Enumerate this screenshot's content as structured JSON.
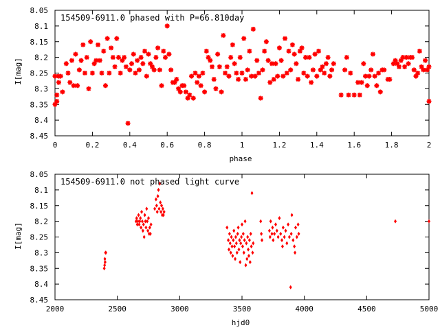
{
  "chart_data": [
    {
      "type": "scatter",
      "title": "154509-6911.0 phased with P=66.810day",
      "xlabel": "phase",
      "ylabel": "I[mag]",
      "xlim": [
        0,
        2
      ],
      "ylim": [
        8.05,
        8.45
      ],
      "y_inverted": true,
      "grid": false,
      "marker": "star",
      "color": "#ff0000",
      "xticks": [
        0,
        0.2,
        0.4,
        0.6,
        0.8,
        1,
        1.2,
        1.4,
        1.6,
        1.8,
        2
      ],
      "xtick_labels": [
        "0",
        "0.2",
        "0.4",
        "0.6",
        "0.8",
        "1",
        "1.2",
        "1.4",
        "1.6",
        "1.8",
        "2"
      ],
      "yticks": [
        8.05,
        8.1,
        8.15,
        8.2,
        8.25,
        8.3,
        8.35,
        8.4,
        8.45
      ],
      "ytick_labels": [
        "8.05",
        "8.1",
        "8.15",
        "8.2",
        "8.25",
        "8.3",
        "8.35",
        "8.4",
        "8.45"
      ],
      "points": [
        [
          0.0,
          8.26
        ],
        [
          0.0,
          8.35
        ],
        [
          0.01,
          8.32
        ],
        [
          0.01,
          8.34
        ],
        [
          0.02,
          8.28
        ],
        [
          0.02,
          8.26
        ],
        [
          0.03,
          8.26
        ],
        [
          0.04,
          8.31
        ],
        [
          0.06,
          8.22
        ],
        [
          0.07,
          8.25
        ],
        [
          0.08,
          8.28
        ],
        [
          0.09,
          8.21
        ],
        [
          0.1,
          8.29
        ],
        [
          0.11,
          8.19
        ],
        [
          0.12,
          8.29
        ],
        [
          0.13,
          8.24
        ],
        [
          0.14,
          8.21
        ],
        [
          0.15,
          8.16
        ],
        [
          0.16,
          8.25
        ],
        [
          0.17,
          8.2
        ],
        [
          0.18,
          8.3
        ],
        [
          0.19,
          8.15
        ],
        [
          0.2,
          8.25
        ],
        [
          0.21,
          8.22
        ],
        [
          0.22,
          8.21
        ],
        [
          0.23,
          8.16
        ],
        [
          0.24,
          8.21
        ],
        [
          0.25,
          8.25
        ],
        [
          0.26,
          8.18
        ],
        [
          0.27,
          8.29
        ],
        [
          0.28,
          8.14
        ],
        [
          0.29,
          8.25
        ],
        [
          0.3,
          8.17
        ],
        [
          0.31,
          8.2
        ],
        [
          0.32,
          8.23
        ],
        [
          0.33,
          8.14
        ],
        [
          0.34,
          8.2
        ],
        [
          0.35,
          8.25
        ],
        [
          0.36,
          8.21
        ],
        [
          0.37,
          8.2
        ],
        [
          0.38,
          8.23
        ],
        [
          0.39,
          8.41
        ],
        [
          0.4,
          8.24
        ],
        [
          0.41,
          8.22
        ],
        [
          0.42,
          8.19
        ],
        [
          0.43,
          8.25
        ],
        [
          0.44,
          8.21
        ],
        [
          0.45,
          8.24
        ],
        [
          0.46,
          8.2
        ],
        [
          0.47,
          8.22
        ],
        [
          0.48,
          8.18
        ],
        [
          0.49,
          8.26
        ],
        [
          0.5,
          8.19
        ],
        [
          0.51,
          8.22
        ],
        [
          0.52,
          8.23
        ],
        [
          0.53,
          8.24
        ],
        [
          0.54,
          8.2
        ],
        [
          0.55,
          8.17
        ],
        [
          0.56,
          8.24
        ],
        [
          0.57,
          8.29
        ],
        [
          0.58,
          8.18
        ],
        [
          0.59,
          8.2
        ],
        [
          0.6,
          8.1
        ],
        [
          0.61,
          8.19
        ],
        [
          0.62,
          8.24
        ],
        [
          0.63,
          8.28
        ],
        [
          0.64,
          8.28
        ],
        [
          0.65,
          8.27
        ],
        [
          0.66,
          8.3
        ],
        [
          0.67,
          8.31
        ],
        [
          0.68,
          8.29
        ],
        [
          0.69,
          8.29
        ],
        [
          0.7,
          8.31
        ],
        [
          0.71,
          8.33
        ],
        [
          0.72,
          8.32
        ],
        [
          0.73,
          8.26
        ],
        [
          0.74,
          8.33
        ],
        [
          0.75,
          8.25
        ],
        [
          0.76,
          8.28
        ],
        [
          0.77,
          8.26
        ],
        [
          0.78,
          8.29
        ],
        [
          0.79,
          8.25
        ],
        [
          0.8,
          8.31
        ],
        [
          0.81,
          8.18
        ],
        [
          0.82,
          8.2
        ],
        [
          0.83,
          8.21
        ],
        [
          0.84,
          8.23
        ],
        [
          0.85,
          8.27
        ],
        [
          0.86,
          8.3
        ],
        [
          0.87,
          8.19
        ],
        [
          0.88,
          8.23
        ],
        [
          0.89,
          8.31
        ],
        [
          0.9,
          8.13
        ],
        [
          0.91,
          8.25
        ],
        [
          0.92,
          8.23
        ],
        [
          0.93,
          8.26
        ],
        [
          0.94,
          8.2
        ],
        [
          0.95,
          8.16
        ],
        [
          0.96,
          8.22
        ],
        [
          0.97,
          8.25
        ],
        [
          0.98,
          8.27
        ],
        [
          0.99,
          8.2
        ],
        [
          1.0,
          8.25
        ],
        [
          1.01,
          8.14
        ],
        [
          1.02,
          8.27
        ],
        [
          1.03,
          8.24
        ],
        [
          1.04,
          8.18
        ],
        [
          1.05,
          8.26
        ],
        [
          1.06,
          8.11
        ],
        [
          1.07,
          8.26
        ],
        [
          1.08,
          8.21
        ],
        [
          1.09,
          8.25
        ],
        [
          1.1,
          8.33
        ],
        [
          1.11,
          8.24
        ],
        [
          1.12,
          8.18
        ],
        [
          1.13,
          8.15
        ],
        [
          1.14,
          8.21
        ],
        [
          1.15,
          8.28
        ],
        [
          1.16,
          8.22
        ],
        [
          1.17,
          8.27
        ],
        [
          1.18,
          8.22
        ],
        [
          1.19,
          8.26
        ],
        [
          1.2,
          8.17
        ],
        [
          1.21,
          8.21
        ],
        [
          1.22,
          8.26
        ],
        [
          1.23,
          8.14
        ],
        [
          1.24,
          8.25
        ],
        [
          1.25,
          8.18
        ],
        [
          1.26,
          8.24
        ],
        [
          1.27,
          8.16
        ],
        [
          1.28,
          8.19
        ],
        [
          1.29,
          8.22
        ],
        [
          1.3,
          8.27
        ],
        [
          1.31,
          8.18
        ],
        [
          1.32,
          8.17
        ],
        [
          1.33,
          8.25
        ],
        [
          1.34,
          8.2
        ],
        [
          1.35,
          8.26
        ],
        [
          1.36,
          8.2
        ],
        [
          1.37,
          8.28
        ],
        [
          1.38,
          8.24
        ],
        [
          1.39,
          8.19
        ],
        [
          1.4,
          8.26
        ],
        [
          1.41,
          8.18
        ],
        [
          1.42,
          8.24
        ],
        [
          1.43,
          8.23
        ],
        [
          1.44,
          8.25
        ],
        [
          1.45,
          8.22
        ],
        [
          1.46,
          8.2
        ],
        [
          1.47,
          8.26
        ],
        [
          1.48,
          8.24
        ],
        [
          1.49,
          8.22
        ],
        [
          1.53,
          8.32
        ],
        [
          1.55,
          8.24
        ],
        [
          1.56,
          8.2
        ],
        [
          1.57,
          8.32
        ],
        [
          1.58,
          8.25
        ],
        [
          1.6,
          8.32
        ],
        [
          1.62,
          8.28
        ],
        [
          1.63,
          8.32
        ],
        [
          1.64,
          8.28
        ],
        [
          1.65,
          8.22
        ],
        [
          1.66,
          8.26
        ],
        [
          1.67,
          8.29
        ],
        [
          1.68,
          8.26
        ],
        [
          1.69,
          8.24
        ],
        [
          1.7,
          8.19
        ],
        [
          1.71,
          8.26
        ],
        [
          1.72,
          8.29
        ],
        [
          1.73,
          8.25
        ],
        [
          1.74,
          8.31
        ],
        [
          1.75,
          8.24
        ],
        [
          1.76,
          8.24
        ],
        [
          1.78,
          8.27
        ],
        [
          1.79,
          8.27
        ],
        [
          1.81,
          8.22
        ],
        [
          1.82,
          8.21
        ],
        [
          1.83,
          8.22
        ],
        [
          1.84,
          8.23
        ],
        [
          1.85,
          8.21
        ],
        [
          1.86,
          8.2
        ],
        [
          1.87,
          8.23
        ],
        [
          1.88,
          8.2
        ],
        [
          1.89,
          8.22
        ],
        [
          1.9,
          8.2
        ],
        [
          1.91,
          8.2
        ],
        [
          1.92,
          8.24
        ],
        [
          1.93,
          8.26
        ],
        [
          1.94,
          8.25
        ],
        [
          1.95,
          8.18
        ],
        [
          1.96,
          8.23
        ],
        [
          1.97,
          8.24
        ],
        [
          1.98,
          8.21
        ],
        [
          1.99,
          8.24
        ],
        [
          2.0,
          8.34
        ],
        [
          2.0,
          8.23
        ]
      ]
    },
    {
      "type": "scatter",
      "title": "154509-6911.0 not phased light curve",
      "xlabel": "hjd0",
      "ylabel": "I[mag]",
      "xlim": [
        2000,
        5000
      ],
      "ylim": [
        8.05,
        8.45
      ],
      "y_inverted": true,
      "grid": false,
      "marker": "diamond",
      "color": "#ff0000",
      "xticks": [
        2000,
        2500,
        3000,
        3500,
        4000,
        4500,
        5000
      ],
      "xtick_labels": [
        "2000",
        "2500",
        "3000",
        "3500",
        "4000",
        "4500",
        "5000"
      ],
      "yticks": [
        8.05,
        8.1,
        8.15,
        8.2,
        8.25,
        8.3,
        8.35,
        8.4,
        8.45
      ],
      "ytick_labels": [
        "8.05",
        "8.1",
        "8.15",
        "8.2",
        "8.25",
        "8.3",
        "8.35",
        "8.4",
        "8.45"
      ],
      "points": [
        [
          2395,
          8.35
        ],
        [
          2398,
          8.34
        ],
        [
          2400,
          8.32
        ],
        [
          2402,
          8.33
        ],
        [
          2405,
          8.3
        ],
        [
          2408,
          8.3
        ],
        [
          2650,
          8.2
        ],
        [
          2655,
          8.19
        ],
        [
          2660,
          8.21
        ],
        [
          2665,
          8.2
        ],
        [
          2670,
          8.18
        ],
        [
          2675,
          8.21
        ],
        [
          2680,
          8.2
        ],
        [
          2685,
          8.19
        ],
        [
          2690,
          8.22
        ],
        [
          2695,
          8.17
        ],
        [
          2700,
          8.2
        ],
        [
          2705,
          8.23
        ],
        [
          2710,
          8.21
        ],
        [
          2715,
          8.25
        ],
        [
          2720,
          8.18
        ],
        [
          2725,
          8.2
        ],
        [
          2730,
          8.22
        ],
        [
          2735,
          8.16
        ],
        [
          2740,
          8.2
        ],
        [
          2745,
          8.23
        ],
        [
          2750,
          8.19
        ],
        [
          2755,
          8.24
        ],
        [
          2760,
          8.22
        ],
        [
          2765,
          8.24
        ],
        [
          2770,
          8.21
        ],
        [
          2800,
          8.16
        ],
        [
          2810,
          8.13
        ],
        [
          2815,
          8.15
        ],
        [
          2820,
          8.17
        ],
        [
          2825,
          8.12
        ],
        [
          2830,
          8.1
        ],
        [
          2835,
          8.16
        ],
        [
          2840,
          8.08
        ],
        [
          2845,
          8.14
        ],
        [
          2850,
          8.17
        ],
        [
          2855,
          8.15
        ],
        [
          2860,
          8.18
        ],
        [
          2865,
          8.16
        ],
        [
          2870,
          8.18
        ],
        [
          2875,
          8.17
        ],
        [
          3380,
          8.22
        ],
        [
          3390,
          8.26
        ],
        [
          3395,
          8.29
        ],
        [
          3400,
          8.24
        ],
        [
          3405,
          8.27
        ],
        [
          3410,
          8.3
        ],
        [
          3415,
          8.25
        ],
        [
          3420,
          8.28
        ],
        [
          3425,
          8.31
        ],
        [
          3430,
          8.26
        ],
        [
          3435,
          8.23
        ],
        [
          3440,
          8.28
        ],
        [
          3445,
          8.32
        ],
        [
          3450,
          8.25
        ],
        [
          3455,
          8.27
        ],
        [
          3460,
          8.3
        ],
        [
          3465,
          8.24
        ],
        [
          3470,
          8.22
        ],
        [
          3475,
          8.29
        ],
        [
          3480,
          8.26
        ],
        [
          3485,
          8.33
        ],
        [
          3490,
          8.27
        ],
        [
          3495,
          8.25
        ],
        [
          3500,
          8.21
        ],
        [
          3505,
          8.28
        ],
        [
          3510,
          8.24
        ],
        [
          3515,
          8.3
        ],
        [
          3520,
          8.26
        ],
        [
          3525,
          8.2
        ],
        [
          3530,
          8.34
        ],
        [
          3535,
          8.27
        ],
        [
          3540,
          8.32
        ],
        [
          3545,
          8.25
        ],
        [
          3550,
          8.29
        ],
        [
          3555,
          8.31
        ],
        [
          3560,
          8.26
        ],
        [
          3565,
          8.33
        ],
        [
          3570,
          8.24
        ],
        [
          3575,
          8.28
        ],
        [
          3580,
          8.11
        ],
        [
          3585,
          8.3
        ],
        [
          3590,
          8.27
        ],
        [
          3650,
          8.2
        ],
        [
          3655,
          8.24
        ],
        [
          3660,
          8.26
        ],
        [
          3720,
          8.23
        ],
        [
          3725,
          8.25
        ],
        [
          3730,
          8.2
        ],
        [
          3740,
          8.24
        ],
        [
          3745,
          8.22
        ],
        [
          3750,
          8.26
        ],
        [
          3760,
          8.24
        ],
        [
          3770,
          8.21
        ],
        [
          3780,
          8.23
        ],
        [
          3790,
          8.25
        ],
        [
          3800,
          8.19
        ],
        [
          3810,
          8.24
        ],
        [
          3820,
          8.26
        ],
        [
          3825,
          8.28
        ],
        [
          3830,
          8.22
        ],
        [
          3840,
          8.25
        ],
        [
          3850,
          8.23
        ],
        [
          3860,
          8.27
        ],
        [
          3870,
          8.21
        ],
        [
          3880,
          8.25
        ],
        [
          3890,
          8.41
        ],
        [
          3895,
          8.24
        ],
        [
          3900,
          8.18
        ],
        [
          3910,
          8.26
        ],
        [
          3920,
          8.28
        ],
        [
          3925,
          8.3
        ],
        [
          3930,
          8.22
        ],
        [
          3940,
          8.25
        ],
        [
          3950,
          8.21
        ],
        [
          3955,
          8.24
        ],
        [
          4730,
          8.2
        ],
        [
          5000,
          8.2
        ]
      ]
    }
  ]
}
